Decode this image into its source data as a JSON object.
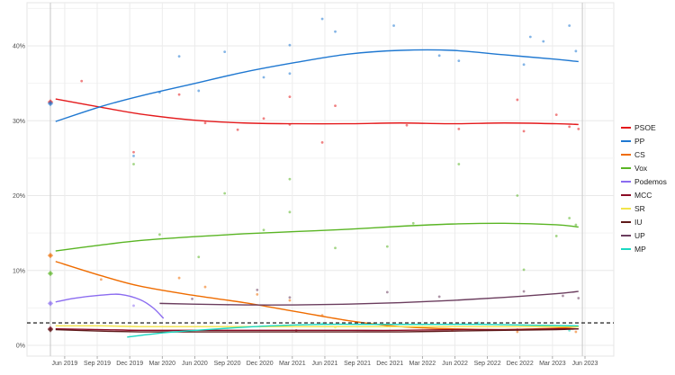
{
  "chart_data": {
    "type": "line",
    "title": "",
    "xlabel": "",
    "ylabel": "",
    "ylim": [
      0,
      45
    ],
    "y_ticks": [
      "0%",
      "10%",
      "20%",
      "30%",
      "40%"
    ],
    "y_tick_values": [
      0,
      10,
      20,
      30,
      40
    ],
    "x_ticks": [
      "Jun 2019",
      "Sep 2019",
      "Dec 2019",
      "Mar 2020",
      "Jun 2020",
      "Sep 2020",
      "Dec 2020",
      "Mar 2021",
      "Jun 2021",
      "Sep 2021",
      "Dec 2021",
      "Mar 2022",
      "Jun 2022",
      "Sep 2022",
      "Dec 2022",
      "Mar 2023",
      "Jun 2023"
    ],
    "x_tick_values": [
      2019.42,
      2019.67,
      2019.92,
      2020.17,
      2020.42,
      2020.67,
      2020.92,
      2021.17,
      2021.42,
      2021.67,
      2021.92,
      2022.17,
      2022.42,
      2022.67,
      2022.92,
      2023.17,
      2023.42
    ],
    "xlim": [
      2019.13,
      2023.42
    ],
    "election_lines": [
      2019.31,
      2023.4
    ],
    "threshold": 3,
    "grid": true,
    "legend_position": "right",
    "series": [
      {
        "name": "PSOE",
        "color": "#e41a1c",
        "x": [
          2019.35,
          2019.7,
          2020.0,
          2020.4,
          2020.8,
          2021.2,
          2021.6,
          2022.0,
          2022.4,
          2022.8,
          2023.2,
          2023.37
        ],
        "values": [
          32.9,
          31.8,
          30.9,
          30.1,
          29.7,
          29.6,
          29.6,
          29.7,
          29.6,
          29.7,
          29.6,
          29.5
        ],
        "points": [
          [
            2019.31,
            32.5
          ],
          [
            2019.55,
            35.3
          ],
          [
            2019.95,
            25.8
          ],
          [
            2020.3,
            33.5
          ],
          [
            2020.5,
            29.7
          ],
          [
            2020.75,
            28.8
          ],
          [
            2020.95,
            30.3
          ],
          [
            2021.15,
            33.2
          ],
          [
            2021.15,
            29.5
          ],
          [
            2021.4,
            27.1
          ],
          [
            2021.5,
            32.0
          ],
          [
            2022.05,
            29.4
          ],
          [
            2022.45,
            28.9
          ],
          [
            2022.9,
            32.8
          ],
          [
            2022.95,
            28.6
          ],
          [
            2023.2,
            30.8
          ],
          [
            2023.3,
            29.2
          ],
          [
            2023.37,
            28.9
          ]
        ]
      },
      {
        "name": "PP",
        "color": "#1f78d1",
        "x": [
          2019.35,
          2019.7,
          2020.0,
          2020.4,
          2020.8,
          2021.2,
          2021.6,
          2022.0,
          2022.4,
          2022.8,
          2023.2,
          2023.37
        ],
        "values": [
          29.9,
          31.9,
          33.3,
          34.9,
          36.5,
          37.8,
          38.9,
          39.4,
          39.4,
          38.8,
          38.2,
          37.9
        ],
        "points": [
          [
            2019.31,
            32.3
          ],
          [
            2019.95,
            25.3
          ],
          [
            2020.15,
            33.8
          ],
          [
            2020.3,
            38.6
          ],
          [
            2020.45,
            34.0
          ],
          [
            2020.65,
            39.2
          ],
          [
            2020.95,
            35.8
          ],
          [
            2021.15,
            40.1
          ],
          [
            2021.15,
            36.3
          ],
          [
            2021.4,
            43.6
          ],
          [
            2021.5,
            41.9
          ],
          [
            2021.95,
            42.7
          ],
          [
            2022.3,
            38.7
          ],
          [
            2022.45,
            38.0
          ],
          [
            2022.95,
            37.5
          ],
          [
            2023.0,
            41.2
          ],
          [
            2023.1,
            40.6
          ],
          [
            2023.3,
            42.7
          ],
          [
            2023.35,
            39.3
          ]
        ]
      },
      {
        "name": "CS",
        "color": "#ef6c00",
        "x": [
          2019.35,
          2019.7,
          2020.0,
          2020.4,
          2020.8,
          2021.2,
          2021.6,
          2022.0,
          2022.4,
          2022.8,
          2023.2,
          2023.37
        ],
        "values": [
          11.2,
          9.3,
          7.9,
          6.7,
          5.7,
          4.5,
          3.3,
          2.5,
          2.2,
          2.1,
          2.3,
          2.5
        ],
        "points": [
          [
            2019.31,
            12.0
          ],
          [
            2019.7,
            8.8
          ],
          [
            2020.3,
            9.0
          ],
          [
            2020.5,
            7.8
          ],
          [
            2020.9,
            6.8
          ],
          [
            2021.15,
            6.0
          ],
          [
            2021.4,
            4.0
          ],
          [
            2021.9,
            2.6
          ],
          [
            2022.4,
            2.0
          ],
          [
            2022.9,
            1.8
          ],
          [
            2023.35,
            1.8
          ]
        ]
      },
      {
        "name": "Vox",
        "color": "#5ab524",
        "x": [
          2019.35,
          2019.7,
          2020.0,
          2020.4,
          2020.8,
          2021.2,
          2021.6,
          2022.0,
          2022.4,
          2022.8,
          2023.2,
          2023.37
        ],
        "values": [
          12.6,
          13.4,
          14.0,
          14.5,
          14.9,
          15.2,
          15.5,
          15.9,
          16.2,
          16.3,
          16.1,
          15.8
        ],
        "points": [
          [
            2019.31,
            9.6
          ],
          [
            2019.95,
            24.2
          ],
          [
            2020.15,
            14.8
          ],
          [
            2020.45,
            11.8
          ],
          [
            2020.65,
            20.3
          ],
          [
            2020.95,
            15.4
          ],
          [
            2021.15,
            22.2
          ],
          [
            2021.15,
            17.8
          ],
          [
            2021.5,
            13.0
          ],
          [
            2021.9,
            13.2
          ],
          [
            2022.1,
            16.3
          ],
          [
            2022.45,
            24.2
          ],
          [
            2022.9,
            20.0
          ],
          [
            2022.95,
            10.1
          ],
          [
            2023.2,
            14.6
          ],
          [
            2023.3,
            17.0
          ],
          [
            2023.35,
            16.1
          ]
        ]
      },
      {
        "name": "Podemos",
        "color": "#8b6cf0",
        "x": [
          2019.35,
          2019.5,
          2019.7,
          2019.85,
          2020.0,
          2020.1,
          2020.18
        ],
        "values": [
          5.8,
          6.3,
          6.7,
          6.8,
          6.1,
          5.0,
          3.6
        ],
        "points": [
          [
            2019.31,
            5.6
          ],
          [
            2019.95,
            5.3
          ]
        ]
      },
      {
        "name": "MCC",
        "color": "#8b0b25",
        "x": [
          2019.35,
          2019.7,
          2020.0,
          2020.4,
          2020.8,
          2021.2,
          2021.6,
          2022.0,
          2022.4,
          2022.8,
          2023.2,
          2023.37
        ],
        "values": [
          2.2,
          2.1,
          2.0,
          2.0,
          2.0,
          2.0,
          2.0,
          2.0,
          2.1,
          2.1,
          2.2,
          2.2
        ],
        "points": [
          [
            2019.31,
            2.2
          ],
          [
            2021.2,
            2.0
          ],
          [
            2022.9,
            2.1
          ]
        ]
      },
      {
        "name": "SR",
        "color": "#f2e44a",
        "x": [
          2019.35,
          2019.7,
          2020.0,
          2020.4,
          2020.8,
          2021.2,
          2021.6,
          2022.0,
          2022.4,
          2022.8,
          2023.2,
          2023.37
        ],
        "values": [
          2.6,
          2.6,
          2.5,
          2.5,
          2.5,
          2.5,
          2.5,
          2.5,
          2.5,
          2.5,
          2.5,
          2.5
        ],
        "points": [
          [
            2021.5,
            2.4
          ],
          [
            2023.3,
            2.2
          ]
        ]
      },
      {
        "name": "IU",
        "color": "#5e1a1a",
        "x": [
          2019.35,
          2019.7,
          2020.0,
          2020.4,
          2020.8,
          2021.2,
          2021.6,
          2022.0,
          2022.4,
          2022.8,
          2023.2,
          2023.37
        ],
        "values": [
          2.1,
          1.9,
          1.8,
          1.8,
          1.8,
          1.8,
          1.8,
          1.8,
          1.9,
          2.0,
          2.1,
          2.2
        ],
        "points": [
          [
            2019.31,
            2.1
          ]
        ]
      },
      {
        "name": "UP",
        "color": "#6b3d5e",
        "x": [
          2020.15,
          2020.4,
          2020.8,
          2021.2,
          2021.6,
          2022.0,
          2022.4,
          2022.8,
          2023.2,
          2023.37
        ],
        "values": [
          5.6,
          5.5,
          5.4,
          5.4,
          5.5,
          5.7,
          6.0,
          6.4,
          6.9,
          7.2
        ],
        "points": [
          [
            2020.4,
            6.2
          ],
          [
            2020.9,
            7.4
          ],
          [
            2021.15,
            6.4
          ],
          [
            2021.9,
            7.1
          ],
          [
            2022.3,
            6.5
          ],
          [
            2022.95,
            7.2
          ],
          [
            2023.25,
            6.6
          ],
          [
            2023.37,
            6.3
          ]
        ]
      },
      {
        "name": "MP",
        "color": "#1ad8c2",
        "x": [
          2019.9,
          2020.2,
          2020.6,
          2021.0,
          2021.4,
          2021.8,
          2022.2,
          2022.6,
          2023.0,
          2023.37
        ],
        "values": [
          1.1,
          1.7,
          2.2,
          2.6,
          2.8,
          2.8,
          2.8,
          2.8,
          2.7,
          2.6
        ],
        "points": [
          [
            2021.4,
            2.9
          ],
          [
            2022.6,
            3.0
          ],
          [
            2023.3,
            2.0
          ]
        ]
      }
    ]
  }
}
